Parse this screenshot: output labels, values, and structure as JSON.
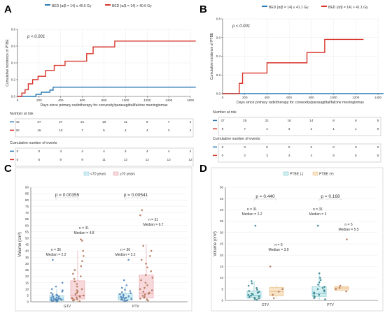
{
  "panels": {
    "A": {
      "letter": "A",
      "legend": [
        "BED (α/β = 14) ≤ 40.6 Gy",
        "BED (α/β = 14) > 40.6 Gy"
      ],
      "pvalue": "p < 0.001",
      "ylabel": "Cumulative incidence of PTBE",
      "xlabel": "Days since primary radiotherapy for convexity/parasagittal/falcine meningiomas",
      "risk_title": "Number at risk",
      "events_title": "Cumulative number of events",
      "risk_rows": [
        [
          "42",
          "37",
          "27",
          "21",
          "18",
          "11",
          "9",
          "7",
          "4"
        ],
        [
          "25",
          "16",
          "10",
          "7",
          "5",
          "4",
          "4",
          "3",
          "3"
        ]
      ],
      "event_rows": [
        [
          "0",
          "0",
          "4",
          "4",
          "4",
          "4",
          "4",
          "4",
          "4"
        ],
        [
          "0",
          "6",
          "9",
          "9",
          "11",
          "12",
          "12",
          "12",
          "12"
        ]
      ]
    },
    "B": {
      "letter": "B",
      "legend": [
        "BED (α/β = 14) ≤ 41.1 Gy",
        "BED (α/β = 14) > 41.1 Gy"
      ],
      "pvalue": "p < 0.001",
      "ylabel": "Cumulative incidence of PTBE",
      "xlabel": "Days since primary radiotherapy for convexity/parasagittal/falcine meningiomas",
      "risk_title": "Number at risk",
      "events_title": "Cumulative number of events",
      "risk_rows": [
        [
          "27",
          "25",
          "21",
          "16",
          "14",
          "8",
          "6",
          "5"
        ],
        [
          "9",
          "7",
          "4",
          "3",
          "2",
          "1",
          "1",
          "0"
        ]
      ],
      "event_rows": [
        [
          "0",
          "0",
          "0",
          "0",
          "0",
          "0",
          "0",
          "0"
        ],
        [
          "0",
          "2",
          "3",
          "3",
          "4",
          "5",
          "5",
          "5"
        ]
      ]
    },
    "C": {
      "letter": "C",
      "legend": [
        "<70 years",
        "≥70 years"
      ],
      "ylabel": "Volume (cm³)",
      "p_values": [
        "p = 0.00355",
        "p = 0.00541"
      ],
      "annotations": {
        "gtv_lt70": [
          "n = 36",
          "Median = 2.2"
        ],
        "gtv_ge70": [
          "n = 31",
          "Median = 4.8"
        ],
        "ptv_lt70": [
          "n = 36",
          "Median = 3.2"
        ],
        "ptv_ge70": [
          "n = 31",
          "Median = 6.7"
        ]
      }
    },
    "D": {
      "letter": "D",
      "legend": [
        "PTBE (-)",
        "PTBE (+)"
      ],
      "ylabel": "Volume (cm³)",
      "p_values": [
        "p = 0.440",
        "p = 0.168"
      ],
      "annotations": {
        "gtv_neg": [
          "n = 31",
          "Median = 2.2"
        ],
        "gtv_pos": [
          "n = 5",
          "Median = 3.9"
        ],
        "ptv_neg": [
          "n = 31",
          "Median = 3"
        ],
        "ptv_pos": [
          "n = 5",
          "Median = 5.5"
        ]
      }
    }
  },
  "colors": {
    "blue": "#2c7bb6",
    "red": "#d7342a",
    "lt70_fill": "#d5eef5",
    "ge70_fill": "#f7d9dc",
    "neg_fill": "#d3eef0",
    "pos_fill": "#f7e3c7",
    "dot_teal": "#2f7f8a",
    "dot_brown": "#b07050",
    "dot_blue": "#4a7fb5"
  },
  "chart_data": [
    {
      "type": "line",
      "panel": "A",
      "xlim": [
        0,
        1600
      ],
      "ylim": [
        0,
        0.8
      ],
      "x_ticks": [
        0,
        200,
        400,
        600,
        800,
        1000,
        1200,
        1400,
        1600
      ],
      "y_ticks": [
        0.0,
        0.2,
        0.4,
        0.6,
        0.8
      ],
      "series": [
        {
          "name": "BED (α/β = 14) ≤ 40.6 Gy",
          "x": [
            0,
            130,
            170,
            220,
            300,
            330,
            1650
          ],
          "y": [
            0,
            0,
            0.025,
            0.05,
            0.075,
            0.11,
            0.11
          ]
        },
        {
          "name": "BED (α/β = 14) > 40.6 Gy",
          "x": [
            0,
            40,
            70,
            100,
            140,
            190,
            260,
            340,
            440,
            560,
            640,
            700,
            900,
            1650
          ],
          "y": [
            0,
            0.04,
            0.08,
            0.15,
            0.2,
            0.24,
            0.31,
            0.37,
            0.42,
            0.42,
            0.51,
            0.59,
            0.66,
            0.66
          ]
        }
      ]
    },
    {
      "type": "line",
      "panel": "B",
      "xlim": [
        0,
        1400
      ],
      "ylim": [
        0,
        0.8
      ],
      "x_ticks": [
        0,
        200,
        400,
        600,
        800,
        1000,
        1200,
        1400
      ],
      "y_ticks": [
        0.0,
        0.2,
        0.4,
        0.6,
        0.8
      ],
      "series": [
        {
          "name": "BED (α/β = 14) ≤ 41.1 Gy",
          "x": [
            0,
            1450
          ],
          "y": [
            0,
            0
          ]
        },
        {
          "name": "BED (α/β = 14) > 41.1 Gy",
          "x": [
            0,
            150,
            180,
            400,
            760,
            920,
            1270
          ],
          "y": [
            0,
            0.11,
            0.22,
            0.33,
            0.44,
            0.58,
            0.58
          ]
        }
      ]
    },
    {
      "type": "box",
      "panel": "C",
      "categories": [
        "GTV",
        "PTV"
      ],
      "ylim": [
        0,
        90
      ],
      "y_ticks": [
        0,
        5,
        10,
        15,
        20,
        25,
        30,
        35,
        40,
        45,
        50,
        55,
        60,
        65,
        70,
        75,
        80,
        85,
        90
      ],
      "series": [
        {
          "name": "<70 years",
          "boxes": [
            {
              "category": "GTV",
              "q1": 0.8,
              "median": 2.2,
              "q3": 4.8,
              "whisker_low": 0.1,
              "whisker_high": 10,
              "points": [
                0.3,
                0.5,
                0.7,
                0.9,
                1.1,
                1.3,
                1.5,
                1.7,
                1.9,
                2.1,
                2.3,
                2.5,
                2.8,
                3.1,
                3.4,
                3.8,
                4.2,
                4.6,
                5,
                5.5,
                6,
                7,
                8,
                9,
                10,
                12,
                15,
                33
              ]
            },
            {
              "category": "PTV",
              "q1": 1.5,
              "median": 3.2,
              "q3": 6.5,
              "whisker_low": 0.4,
              "whisker_high": 12,
              "points": [
                0.6,
                0.9,
                1.2,
                1.5,
                1.8,
                2.1,
                2.4,
                2.8,
                3.2,
                3.6,
                4,
                4.5,
                5,
                5.5,
                6,
                6.8,
                7.5,
                8.5,
                9.5,
                11,
                13,
                17,
                33
              ]
            }
          ]
        },
        {
          "name": "≥70 years",
          "boxes": [
            {
              "category": "GTV",
              "q1": 2.2,
              "median": 4.8,
              "q3": 16.5,
              "whisker_low": 0.3,
              "whisker_high": 40,
              "points": [
                0.5,
                1,
                1.5,
                2,
                2.5,
                3,
                3.5,
                4,
                4.5,
                5,
                6,
                7,
                8,
                9,
                10,
                12,
                14,
                16,
                18,
                20,
                22,
                25,
                28,
                32,
                36,
                40,
                48,
                49
              ]
            },
            {
              "category": "PTV",
              "q1": 3,
              "median": 6.7,
              "q3": 21,
              "whisker_low": 0.6,
              "whisker_high": 45,
              "points": [
                1,
                1.8,
                2.5,
                3.2,
                4,
                4.8,
                5.6,
                6.4,
                7.2,
                8,
                9,
                10,
                11,
                13,
                15,
                17,
                19,
                21,
                24,
                27,
                30,
                33,
                36,
                40,
                44,
                68,
                72
              ]
            }
          ]
        }
      ]
    },
    {
      "type": "box",
      "panel": "D",
      "categories": [
        "GTV",
        "PTV"
      ],
      "ylim": [
        0,
        50
      ],
      "y_ticks": [
        0,
        5,
        10,
        15,
        20,
        25,
        30,
        35,
        40,
        45,
        50
      ],
      "series": [
        {
          "name": "PTBE (-)",
          "boxes": [
            {
              "category": "GTV",
              "q1": 1,
              "median": 2.2,
              "q3": 4.2,
              "whisker_low": 0.1,
              "whisker_high": 8.5,
              "points": [
                0.3,
                0.6,
                0.9,
                1.2,
                1.5,
                1.8,
                2.1,
                2.4,
                2.7,
                3,
                3.4,
                3.8,
                4.2,
                4.8,
                5.5,
                6.5,
                7.5,
                8.5,
                33
              ]
            },
            {
              "category": "PTV",
              "q1": 1.8,
              "median": 3,
              "q3": 6,
              "whisker_low": 0.3,
              "whisker_high": 12,
              "points": [
                0.5,
                1,
                1.5,
                2,
                2.5,
                3,
                3.5,
                4,
                4.5,
                5,
                5.5,
                6,
                7,
                8,
                9,
                10,
                12,
                33
              ]
            }
          ]
        },
        {
          "name": "PTBE (+)",
          "boxes": [
            {
              "category": "GTV",
              "q1": 2,
              "median": 3.9,
              "q3": 5.8,
              "whisker_low": 0.8,
              "whisker_high": 7,
              "points": [
                1,
                2.5,
                3.9,
                5,
                15
              ]
            },
            {
              "category": "PTV",
              "q1": 4.5,
              "median": 5.5,
              "q3": 6.2,
              "whisker_low": 4,
              "whisker_high": 6.5,
              "points": [
                4,
                5,
                5.5,
                6.5,
                27
              ]
            }
          ]
        }
      ]
    }
  ]
}
